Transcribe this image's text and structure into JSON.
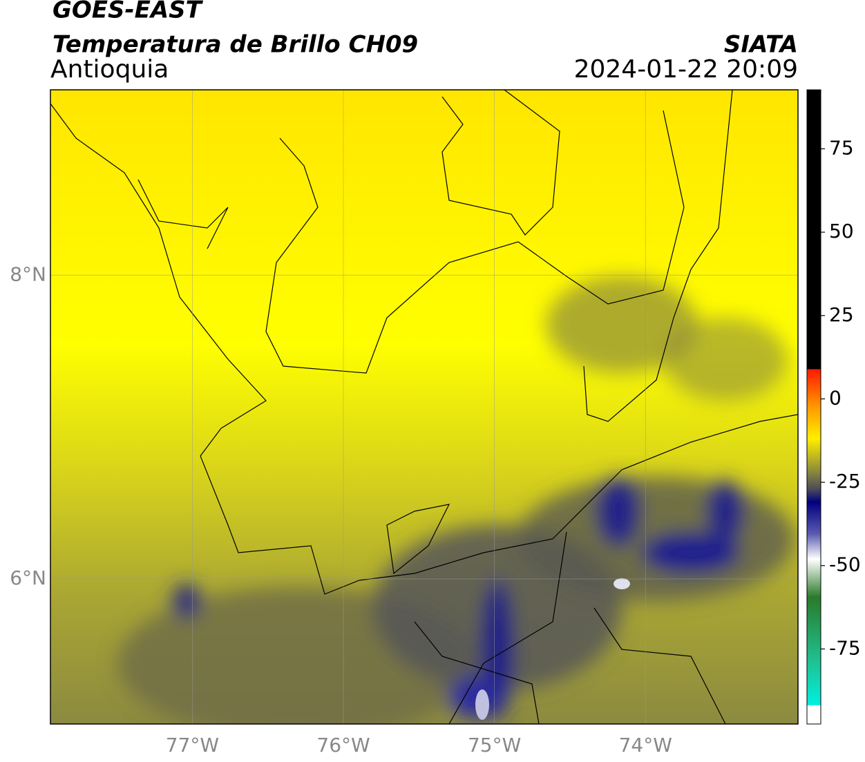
{
  "header": {
    "satellite": "GOES-EAST",
    "product": "Temperatura de Brillo CH09",
    "region": "Antioquia",
    "org": "SIATA",
    "datetime": "2024-01-22 20:09"
  },
  "map": {
    "xlim": [
      -77.94,
      -72.99
    ],
    "ylim": [
      5.045,
      9.22
    ],
    "xticks": [
      {
        "value": -77,
        "label": "77°W"
      },
      {
        "value": -76,
        "label": "76°W"
      },
      {
        "value": -75,
        "label": "75°W"
      },
      {
        "value": -74,
        "label": "74°W"
      }
    ],
    "yticks": [
      {
        "value": 8,
        "label": "8°N"
      },
      {
        "value": 6,
        "label": "6°N"
      }
    ],
    "grid": true
  },
  "colorbar": {
    "lim": [
      -97.5,
      92.7
    ],
    "ticks": [
      75,
      50,
      25,
      0,
      -25,
      -50,
      -75
    ]
  }
}
